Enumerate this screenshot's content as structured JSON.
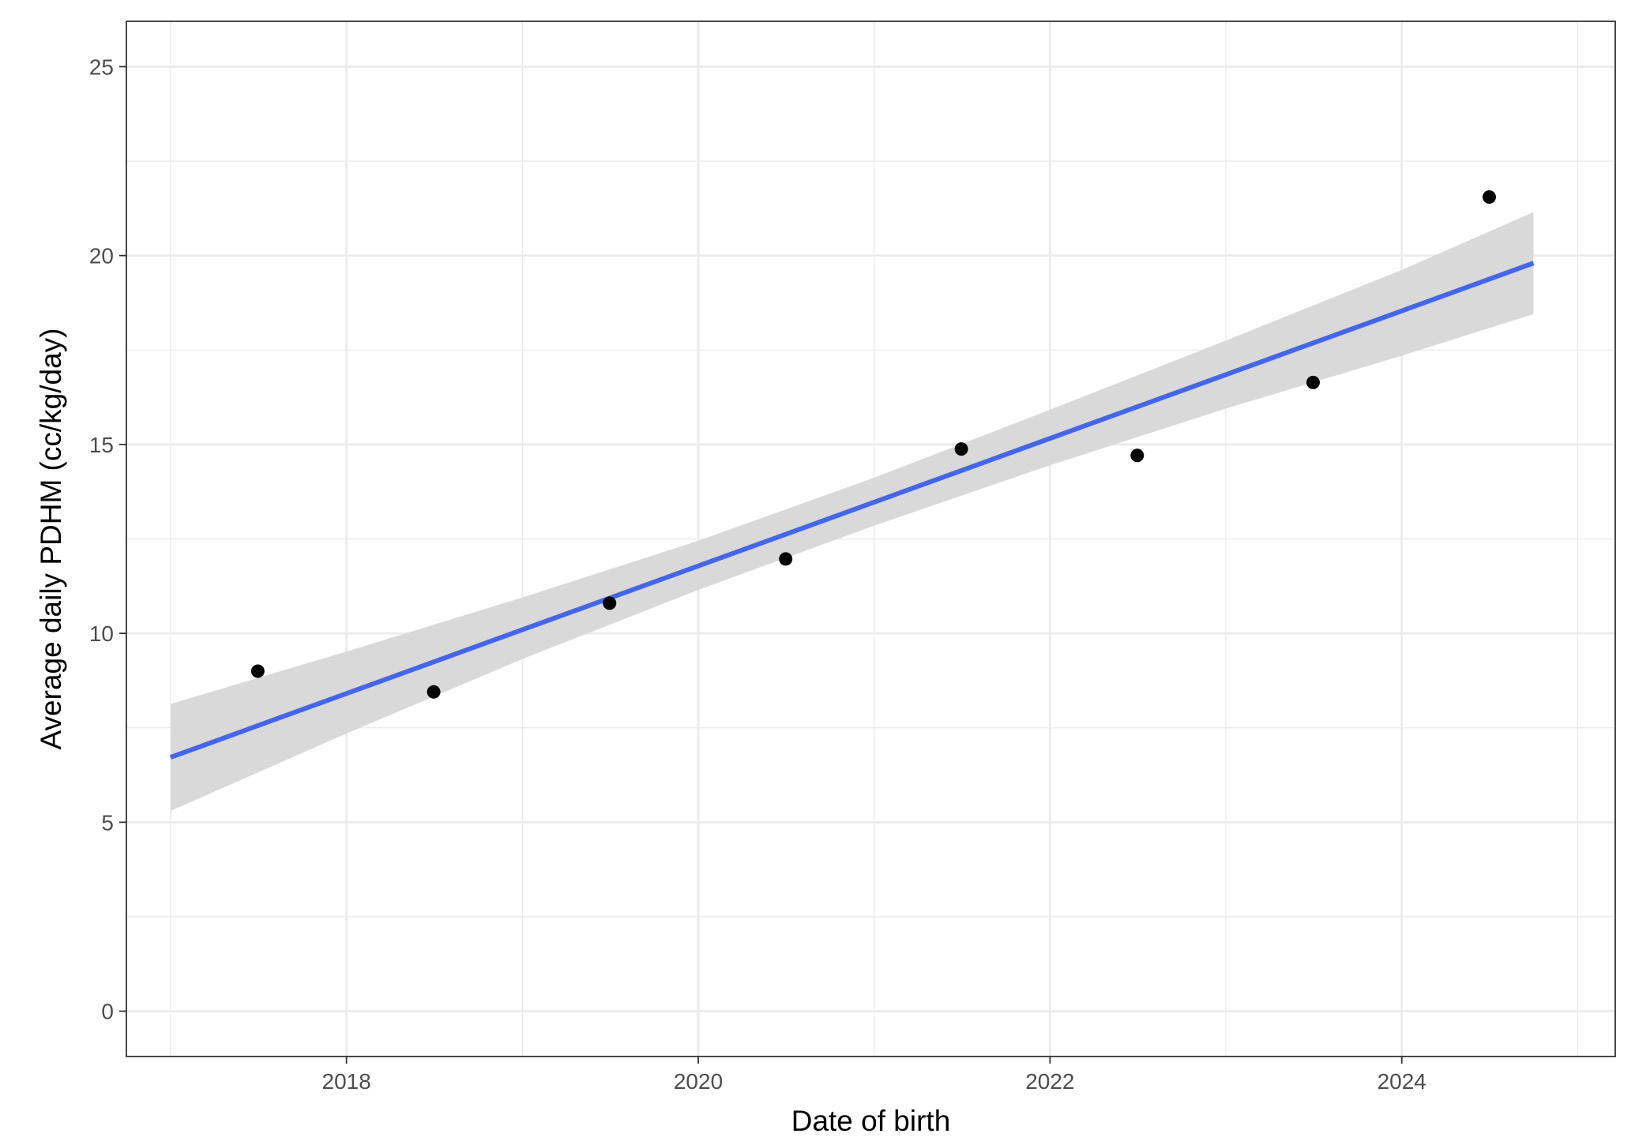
{
  "chart_data": {
    "type": "scatter",
    "xlabel": "Date of birth",
    "ylabel": "Average daily PDHM (cc/kg/day)",
    "xlim": [
      "2016-10-01",
      "2025-03-20"
    ],
    "ylim": [
      -1.2,
      26.2
    ],
    "x_ticks": [
      "2018",
      "2020",
      "2022",
      "2024"
    ],
    "x_tick_values": [
      "2018-01-01",
      "2020-01-01",
      "2022-01-01",
      "2024-01-01"
    ],
    "x_minor_tick_values": [
      "2017-01-01",
      "2019-01-01",
      "2021-01-01",
      "2023-01-01",
      "2025-01-01"
    ],
    "y_ticks": [
      "0",
      "5",
      "10",
      "15",
      "20",
      "25"
    ],
    "y_tick_values": [
      0,
      5,
      10,
      15,
      20,
      25
    ],
    "y_minor_tick_values": [
      2.5,
      7.5,
      12.5,
      17.5,
      22.5
    ],
    "grid": true,
    "legend": "none",
    "points": [
      {
        "x": "2017-07-01",
        "y": 9.0
      },
      {
        "x": "2018-07-01",
        "y": 8.45
      },
      {
        "x": "2019-07-01",
        "y": 10.8
      },
      {
        "x": "2020-07-01",
        "y": 11.97
      },
      {
        "x": "2021-07-01",
        "y": 14.88
      },
      {
        "x": "2022-07-01",
        "y": 14.71
      },
      {
        "x": "2023-07-01",
        "y": 16.64
      },
      {
        "x": "2024-07-01",
        "y": 21.55
      }
    ],
    "trend": {
      "method": "linear",
      "start": {
        "x": "2017-01-01",
        "y": 6.72
      },
      "end": {
        "x": "2024-10-01",
        "y": 19.8
      },
      "band": [
        {
          "x": "2017-01-01",
          "lower": 5.3,
          "upper": 8.13
        },
        {
          "x": "2018-01-01",
          "lower": 7.35,
          "upper": 9.52
        },
        {
          "x": "2019-01-01",
          "lower": 9.32,
          "upper": 10.95
        },
        {
          "x": "2020-01-01",
          "lower": 11.15,
          "upper": 12.45
        },
        {
          "x": "2021-01-01",
          "lower": 12.85,
          "upper": 14.12
        },
        {
          "x": "2022-01-01",
          "lower": 14.45,
          "upper": 15.92
        },
        {
          "x": "2023-01-01",
          "lower": 15.95,
          "upper": 17.75
        },
        {
          "x": "2024-01-01",
          "lower": 17.35,
          "upper": 19.62
        },
        {
          "x": "2024-10-01",
          "lower": 18.45,
          "upper": 21.15
        }
      ]
    },
    "colors": {
      "points": "#000000",
      "trend_line": "#4466e9",
      "band": "#d9d9d9",
      "grid": "#ebebeb",
      "panel_border": "#333333"
    }
  }
}
